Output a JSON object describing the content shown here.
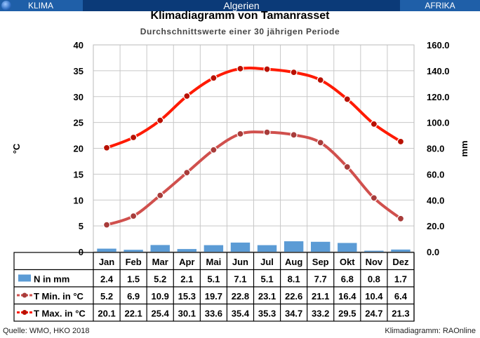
{
  "header": {
    "left_label": "KLIMA",
    "center_label": "Algerien",
    "right_label": "AFRIKA"
  },
  "footer": {
    "left": "Quelle:  WMO, HKO 2018",
    "right": "Klimadiagramm:  RAOnline"
  },
  "chart_data": {
    "type": "bar+line",
    "title": "Klimadiagramm von Tamanrasset",
    "subtitle": "Durchschnittswerte einer 30 jährigen Periode",
    "ylabel_left": "°C",
    "ylabel_right": "mm",
    "ylim_left": [
      0,
      40
    ],
    "ylim_right": [
      0,
      160
    ],
    "yticks_left": [
      "0",
      "5",
      "10",
      "15",
      "20",
      "25",
      "30",
      "35",
      "40"
    ],
    "yticks_right": [
      "0.0",
      "20.0",
      "40.0",
      "60.0",
      "80.0",
      "100.0",
      "120.0",
      "140.0",
      "160.0"
    ],
    "grid": true,
    "categories": [
      "Jan",
      "Feb",
      "Mar",
      "Apr",
      "Mai",
      "Jun",
      "Jul",
      "Aug",
      "Sep",
      "Okt",
      "Nov",
      "Dez"
    ],
    "series": [
      {
        "name": "N in mm",
        "type": "bar",
        "axis": "right",
        "color": "#5b9bd5",
        "values": [
          2.4,
          1.5,
          5.2,
          2.1,
          5.1,
          7.1,
          5.1,
          8.1,
          7.7,
          6.8,
          0.8,
          1.7
        ]
      },
      {
        "name": "T Min. in °C",
        "type": "line",
        "axis": "left",
        "color": "#c0504d",
        "values": [
          5.2,
          6.9,
          10.9,
          15.3,
          19.7,
          22.8,
          23.1,
          22.6,
          21.1,
          16.4,
          10.4,
          6.4
        ]
      },
      {
        "name": "T Max. in °C",
        "type": "line",
        "axis": "left",
        "color": "#ff0000",
        "values": [
          20.1,
          22.1,
          25.4,
          30.1,
          33.6,
          35.4,
          35.3,
          34.7,
          33.2,
          29.5,
          24.7,
          21.3
        ]
      }
    ]
  }
}
